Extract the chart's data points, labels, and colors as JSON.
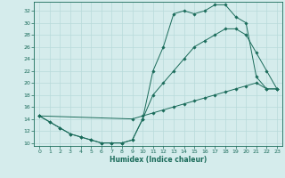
{
  "xlabel": "Humidex (Indice chaleur)",
  "xlim": [
    -0.5,
    23.5
  ],
  "ylim": [
    9.5,
    33.5
  ],
  "yticks": [
    10,
    12,
    14,
    16,
    18,
    20,
    22,
    24,
    26,
    28,
    30,
    32
  ],
  "xticks": [
    0,
    1,
    2,
    3,
    4,
    5,
    6,
    7,
    8,
    9,
    10,
    11,
    12,
    13,
    14,
    15,
    16,
    17,
    18,
    19,
    20,
    21,
    22,
    23
  ],
  "bg_color": "#d5ecec",
  "line_color": "#1a6b5a",
  "grid_color": "#b8dada",
  "line1_x": [
    0,
    1,
    2,
    3,
    4,
    5,
    6,
    7,
    8,
    9,
    10,
    11,
    12,
    13,
    14,
    15,
    16,
    17,
    18,
    19,
    20,
    21,
    22,
    23
  ],
  "line1_y": [
    14.5,
    13.5,
    12.5,
    11.5,
    11.0,
    10.5,
    10.0,
    10.0,
    10.0,
    10.5,
    14.0,
    22.0,
    26.0,
    31.5,
    32.0,
    31.5,
    32.0,
    33.0,
    33.0,
    31.0,
    30.0,
    21.0,
    19.0,
    19.0
  ],
  "line2_x": [
    0,
    1,
    2,
    3,
    4,
    5,
    6,
    7,
    8,
    9,
    10,
    11,
    12,
    13,
    14,
    15,
    16,
    17,
    18,
    19,
    20,
    21,
    22,
    23
  ],
  "line2_y": [
    14.5,
    13.5,
    12.5,
    11.5,
    11.0,
    10.5,
    10.0,
    10.0,
    10.0,
    10.5,
    14.0,
    18.0,
    20.0,
    22.0,
    24.0,
    26.0,
    27.0,
    28.0,
    29.0,
    29.0,
    28.0,
    25.0,
    22.0,
    19.0
  ],
  "line3_x": [
    0,
    9,
    10,
    11,
    12,
    13,
    14,
    15,
    16,
    17,
    18,
    19,
    20,
    21,
    22,
    23
  ],
  "line3_y": [
    14.5,
    14.0,
    14.5,
    15.0,
    15.5,
    16.0,
    16.5,
    17.0,
    17.5,
    18.0,
    18.5,
    19.0,
    19.5,
    20.0,
    19.0,
    19.0
  ]
}
